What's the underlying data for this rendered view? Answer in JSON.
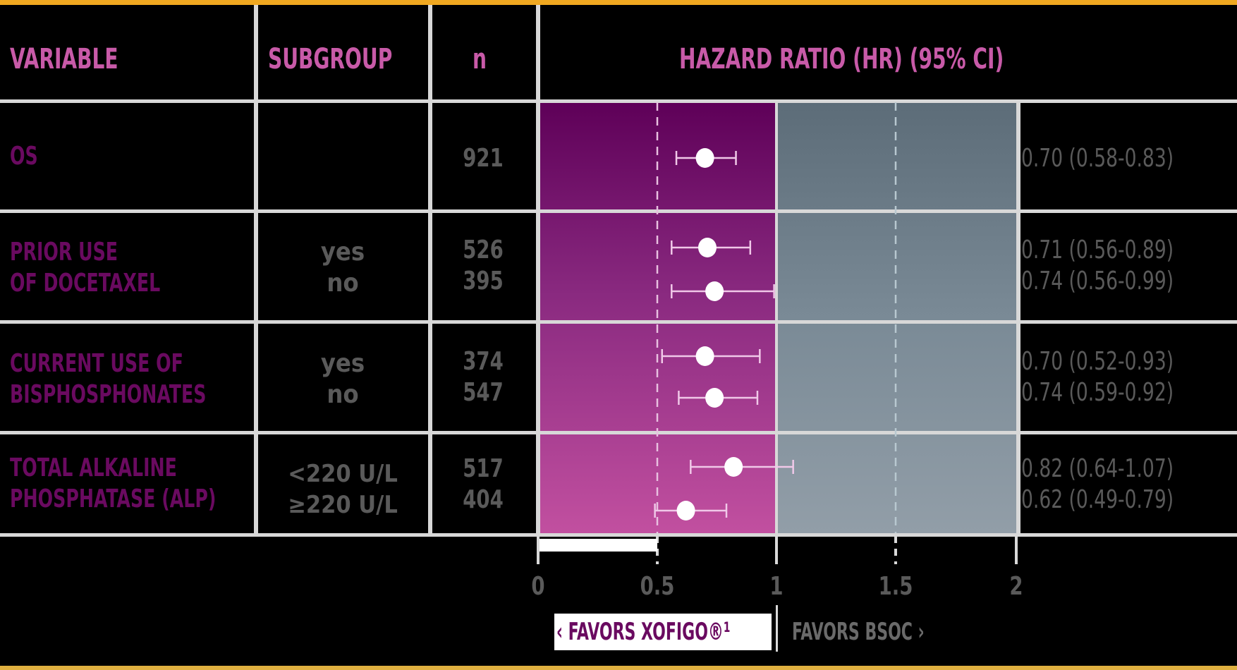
{
  "header": {
    "variable": "VARIABLE",
    "subgroup": "SUBGROUP",
    "n": "n",
    "hr": "HAZARD RATIO (HR) (95% CI)"
  },
  "rows": [
    {
      "variable": "OS",
      "subgroups": [
        ""
      ],
      "n": [
        "921"
      ],
      "hr_text": [
        "0.70 (0.58-0.83)"
      ]
    },
    {
      "variable": "PRIOR USE\nOF DOCETAXEL",
      "subgroups": [
        "yes",
        "no"
      ],
      "n": [
        "526",
        "395"
      ],
      "hr_text": [
        "0.71 (0.56-0.89)",
        "0.74 (0.56-0.99)"
      ]
    },
    {
      "variable": "CURRENT USE OF\nBISPHOSPHONATES",
      "subgroups": [
        "yes",
        "no"
      ],
      "n": [
        "374",
        "547"
      ],
      "hr_text": [
        "0.70 (0.52-0.93)",
        "0.74 (0.59-0.92)"
      ]
    },
    {
      "variable": "TOTAL ALKALINE\nPHOSPHATASE (ALP)",
      "subgroups": [
        "<220 U/L",
        "≥220 U/L"
      ],
      "n": [
        "517",
        "404"
      ],
      "hr_text": [
        "0.82 (0.64-1.07)",
        "0.62 (0.49-0.79)"
      ]
    }
  ],
  "axis": {
    "ticks": [
      "0",
      "0.5",
      "1",
      "1.5",
      "2"
    ]
  },
  "legend": {
    "favors_left": "‹ FAVORS XOFIGO®¹",
    "favors_right": "FAVORS BSOC ›"
  },
  "colors": {
    "accent_bar": "#f0a820",
    "header_text": "#c85aa8",
    "variable_text": "#6a0a60",
    "value_text": "#5a5a5a",
    "favors_xofigo_top": "#5e0058",
    "favors_xofigo_bottom": "#c250a0",
    "favors_bsoc_top": "#5c6c78",
    "favors_bsoc_bottom": "#929ea8"
  },
  "chart_data": {
    "type": "forest",
    "title": "HAZARD RATIO (HR) (95% CI)",
    "xlabel": "",
    "xlim": [
      0,
      2
    ],
    "xticks": [
      0,
      0.5,
      1,
      1.5,
      2
    ],
    "reference_line": 1,
    "grid": "dashed at 0.5 and 1.5",
    "region_labels": {
      "left": "FAVORS XOFIGO®",
      "right": "FAVORS BSOC"
    },
    "series": [
      {
        "variable": "OS",
        "subgroup": "",
        "n": 921,
        "hr": 0.7,
        "ci_low": 0.58,
        "ci_high": 0.83
      },
      {
        "variable": "Prior use of docetaxel",
        "subgroup": "yes",
        "n": 526,
        "hr": 0.71,
        "ci_low": 0.56,
        "ci_high": 0.89
      },
      {
        "variable": "Prior use of docetaxel",
        "subgroup": "no",
        "n": 395,
        "hr": 0.74,
        "ci_low": 0.56,
        "ci_high": 0.99
      },
      {
        "variable": "Current use of bisphosphonates",
        "subgroup": "yes",
        "n": 374,
        "hr": 0.7,
        "ci_low": 0.52,
        "ci_high": 0.93
      },
      {
        "variable": "Current use of bisphosphonates",
        "subgroup": "no",
        "n": 547,
        "hr": 0.74,
        "ci_low": 0.59,
        "ci_high": 0.92
      },
      {
        "variable": "Total alkaline phosphatase (ALP)",
        "subgroup": "<220 U/L",
        "n": 517,
        "hr": 0.82,
        "ci_low": 0.64,
        "ci_high": 1.07
      },
      {
        "variable": "Total alkaline phosphatase (ALP)",
        "subgroup": "≥220 U/L",
        "n": 404,
        "hr": 0.62,
        "ci_low": 0.49,
        "ci_high": 0.79
      }
    ]
  }
}
